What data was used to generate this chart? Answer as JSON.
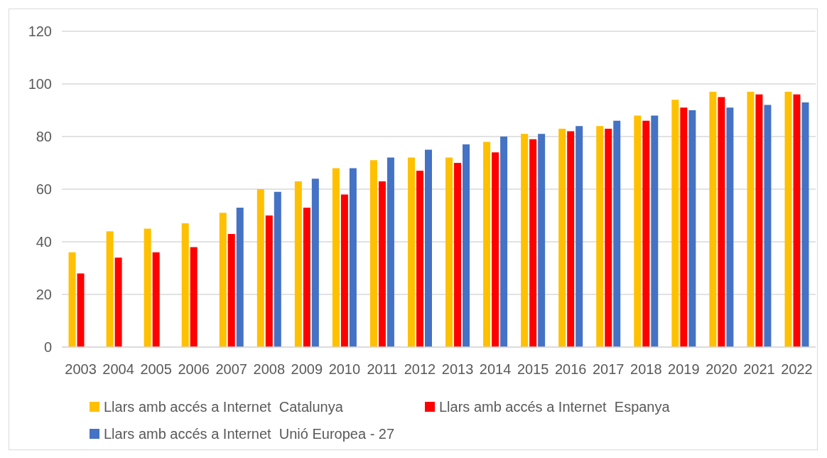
{
  "chart_data": {
    "type": "bar",
    "categories": [
      "2003",
      "2004",
      "2005",
      "2006",
      "2007",
      "2008",
      "2009",
      "2010",
      "2011",
      "2012",
      "2013",
      "2014",
      "2015",
      "2016",
      "2017",
      "2018",
      "2019",
      "2020",
      "2021",
      "2022"
    ],
    "series": [
      {
        "name": "Llars amb accés a Internet  Catalunya",
        "color": "#ffc000",
        "values": [
          36,
          44,
          45,
          47,
          51,
          60,
          63,
          68,
          71,
          72,
          72,
          78,
          81,
          83,
          84,
          88,
          94,
          97,
          97,
          97
        ]
      },
      {
        "name": "Llars amb accés a Internet  Espanya",
        "color": "#ff0000",
        "values": [
          28,
          34,
          36,
          38,
          43,
          50,
          53,
          58,
          63,
          67,
          70,
          74,
          79,
          82,
          83,
          86,
          91,
          95,
          96,
          96
        ]
      },
      {
        "name": "Llars amb accés a Internet  Unió Europea - 27",
        "color": "#4472c4",
        "values": [
          null,
          null,
          null,
          null,
          53,
          59,
          64,
          68,
          72,
          75,
          77,
          80,
          81,
          84,
          86,
          88,
          90,
          91,
          92,
          93
        ]
      }
    ],
    "ylim": [
      0,
      120
    ],
    "yticks": [
      0,
      20,
      40,
      60,
      80,
      100,
      120
    ],
    "grid": "y",
    "legend": "bottom"
  }
}
